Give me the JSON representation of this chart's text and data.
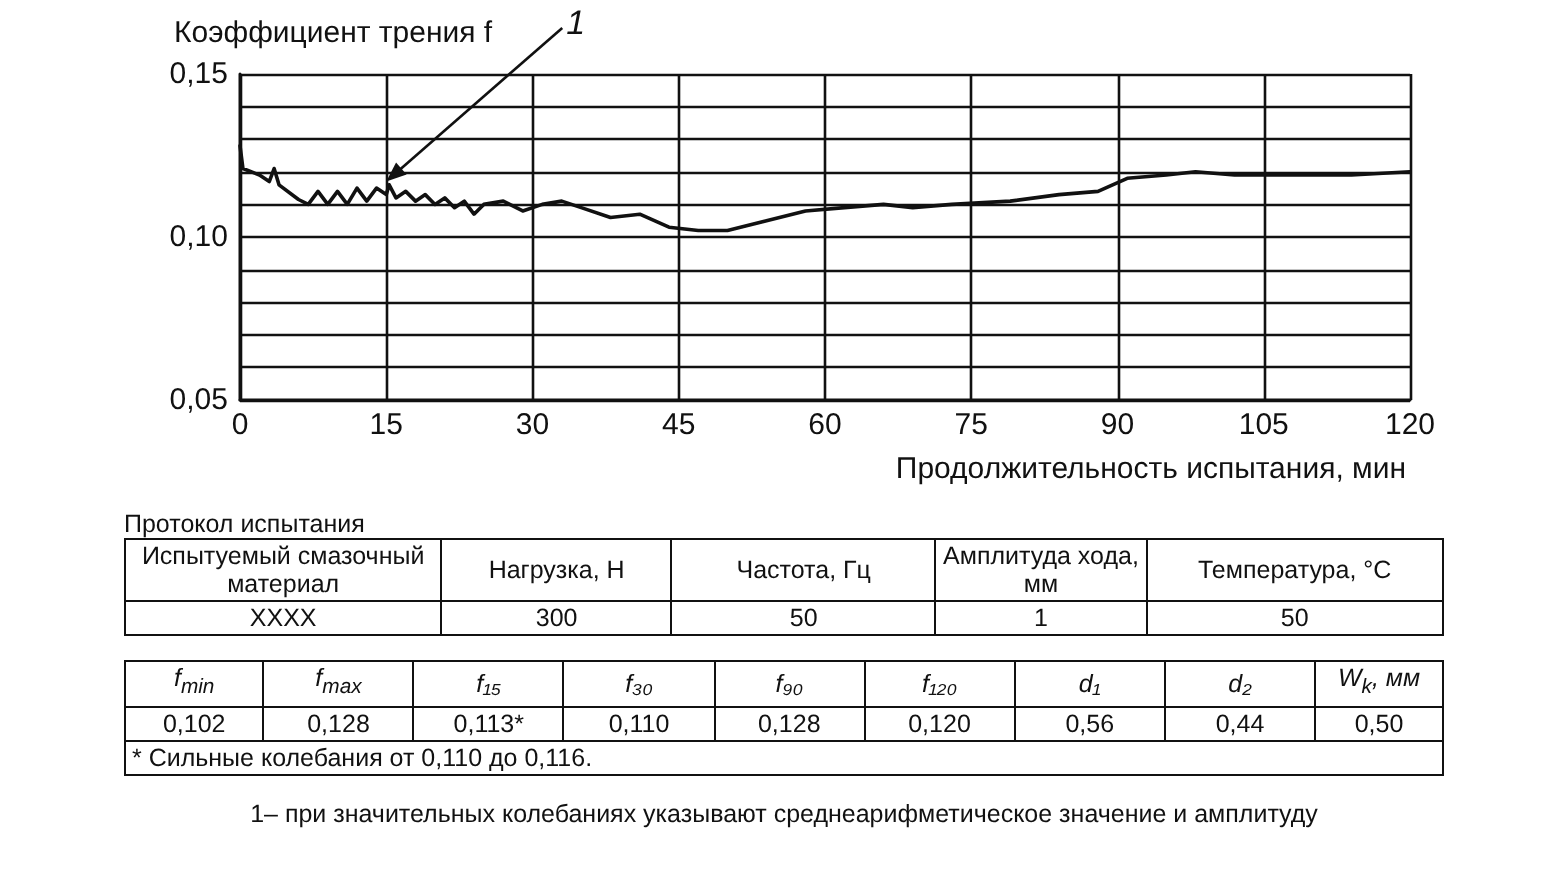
{
  "chart_data": {
    "type": "line",
    "ylabel": "Коэффициент трения f",
    "xlabel": "Продолжительность испытания, мин",
    "x": [
      0,
      0.3,
      2,
      3,
      3.5,
      4,
      6,
      7,
      8,
      9,
      10,
      11,
      12,
      13,
      14,
      15,
      15.3,
      16,
      17,
      18,
      19,
      20,
      21,
      22,
      23,
      24,
      25,
      27,
      29,
      31,
      33,
      35,
      38,
      41,
      44,
      47,
      50,
      54,
      58,
      62,
      66,
      69,
      73,
      79,
      84,
      88,
      91,
      95,
      98,
      102,
      108,
      114,
      120
    ],
    "series": [
      {
        "color": "#111111",
        "values": [
          0.128,
          0.121,
          0.119,
          0.117,
          0.121,
          0.116,
          0.1115,
          0.11,
          0.114,
          0.11,
          0.114,
          0.11,
          0.115,
          0.111,
          0.115,
          0.113,
          0.116,
          0.112,
          0.114,
          0.111,
          0.113,
          0.11,
          0.112,
          0.109,
          0.111,
          0.107,
          0.11,
          0.111,
          0.108,
          0.11,
          0.111,
          0.109,
          0.106,
          0.107,
          0.103,
          0.102,
          0.102,
          0.105,
          0.108,
          0.109,
          0.11,
          0.109,
          0.11,
          0.111,
          0.113,
          0.114,
          0.118,
          0.119,
          0.12,
          0.119,
          0.119,
          0.119,
          0.12
        ]
      }
    ],
    "xlim": [
      0,
      120
    ],
    "xticks": [
      0,
      15,
      30,
      45,
      60,
      75,
      90,
      105,
      120
    ],
    "ylim": [
      0.05,
      0.15
    ],
    "yticks": [
      {
        "value": 0.05,
        "label": "0,05"
      },
      {
        "value": 0.06,
        "label": null
      },
      {
        "value": 0.07,
        "label": null
      },
      {
        "value": 0.08,
        "label": null
      },
      {
        "value": 0.09,
        "label": null
      },
      {
        "value": 0.1,
        "label": "0,10"
      },
      {
        "value": 0.11,
        "label": null
      },
      {
        "value": 0.12,
        "label": null
      },
      {
        "value": 0.13,
        "label": null
      },
      {
        "value": 0.14,
        "label": null
      },
      {
        "value": 0.15,
        "label": "0,15"
      }
    ],
    "grid": true,
    "marker": "none",
    "line_style": "solid",
    "annotations": [
      {
        "text": "1",
        "x": 15,
        "y": 0.117
      },
      "Протокол испытания",
      "Испытуемый смазочный материал",
      "Нагрузка, Н",
      "Частота, Гц",
      "Амплитуда хода, мм",
      "Температура, °C",
      "XXXX",
      "300",
      "50",
      "1",
      "50",
      "f$_{min}$",
      "f$_{max}$",
      "f₁₅",
      "f₃₀",
      "f₉₀",
      "f₁₂₀",
      "d₁",
      "d₂",
      "W$_{k}$, мм",
      "0,102",
      "0,128",
      "0,113*",
      "0,110",
      "0,128",
      "0,120",
      "0,56",
      "0,44",
      "0,50",
      "* Сильные колебания от 0,110 до 0,116.",
      "1– при значительных колебаниях указывают среднеарифметическое значение и амплитуду"
    ]
  }
}
